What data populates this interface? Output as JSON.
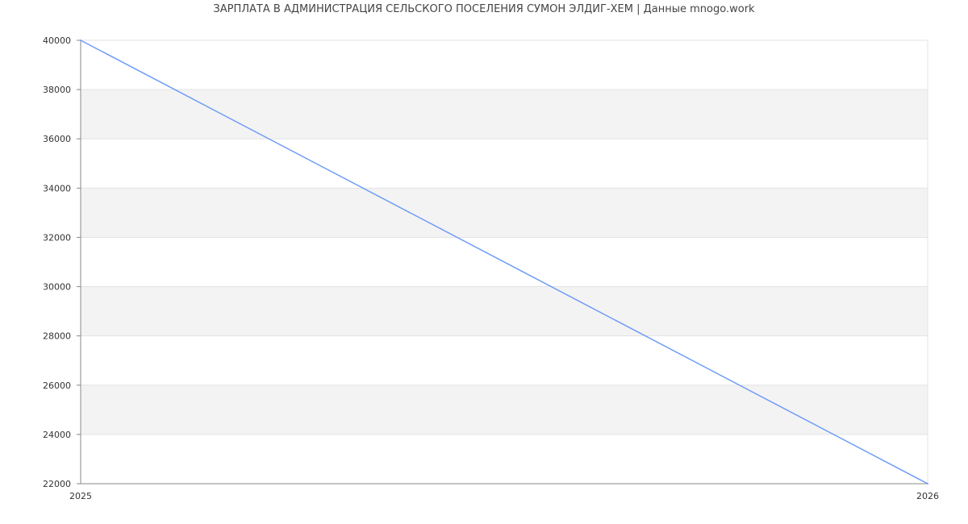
{
  "chart_data": {
    "type": "line",
    "title": "ЗАРПЛАТА В АДМИНИСТРАЦИЯ СЕЛЬСКОГО ПОСЕЛЕНИЯ СУМОН ЭЛДИГ-ХЕМ | Данные mnogo.work",
    "xlabel": "",
    "ylabel": "",
    "x": [
      "2025",
      "2026"
    ],
    "series": [
      {
        "values": [
          40000,
          22000
        ],
        "color": "#6e9cf7"
      }
    ],
    "ylim": [
      22000,
      40000
    ],
    "yticks": [
      22000,
      24000,
      26000,
      28000,
      30000,
      32000,
      34000,
      36000,
      38000,
      40000
    ],
    "xticks": [
      "2025",
      "2026"
    ],
    "grid": true,
    "band_color": "#f3f3f3"
  }
}
